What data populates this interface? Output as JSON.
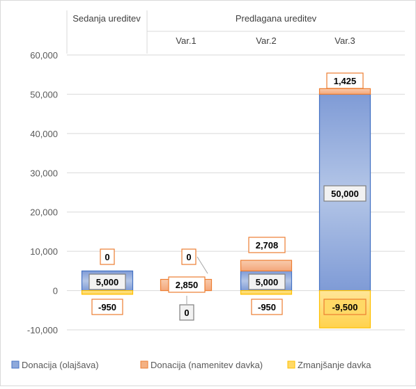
{
  "chart_data": {
    "type": "bar",
    "stacked": true,
    "header": {
      "current_label": "Sedanja ureditev",
      "proposed_label": "Predlagana ureditev"
    },
    "categories": [
      "",
      "Var.1",
      "Var.2",
      "Var.3"
    ],
    "ylim": [
      -10000,
      60000
    ],
    "yticks": [
      -10000,
      0,
      10000,
      20000,
      30000,
      40000,
      50000,
      60000
    ],
    "ytick_labels": [
      "-10,000",
      "0",
      "10,000",
      "20,000",
      "30,000",
      "40,000",
      "50,000",
      "60,000"
    ],
    "grid": true,
    "legend_position": "bottom",
    "series": [
      {
        "name": "Donacija (olajšava)",
        "values": [
          5000,
          0,
          5000,
          50000
        ],
        "labels": [
          "5,000",
          "0",
          "5,000",
          "50,000"
        ],
        "color": "#8ea9db"
      },
      {
        "name": "Donacija (namenitev davka)",
        "values": [
          0,
          2850,
          2708,
          1425
        ],
        "labels": [
          "0",
          "2,850",
          "2,708",
          "1,425"
        ],
        "color": "#f4b183"
      },
      {
        "name": "Zmanjšanje davka",
        "values": [
          -950,
          0,
          -950,
          -9500
        ],
        "labels": [
          "-950",
          "0",
          "-950",
          "-9,500"
        ],
        "color": "#ffd966"
      }
    ]
  }
}
